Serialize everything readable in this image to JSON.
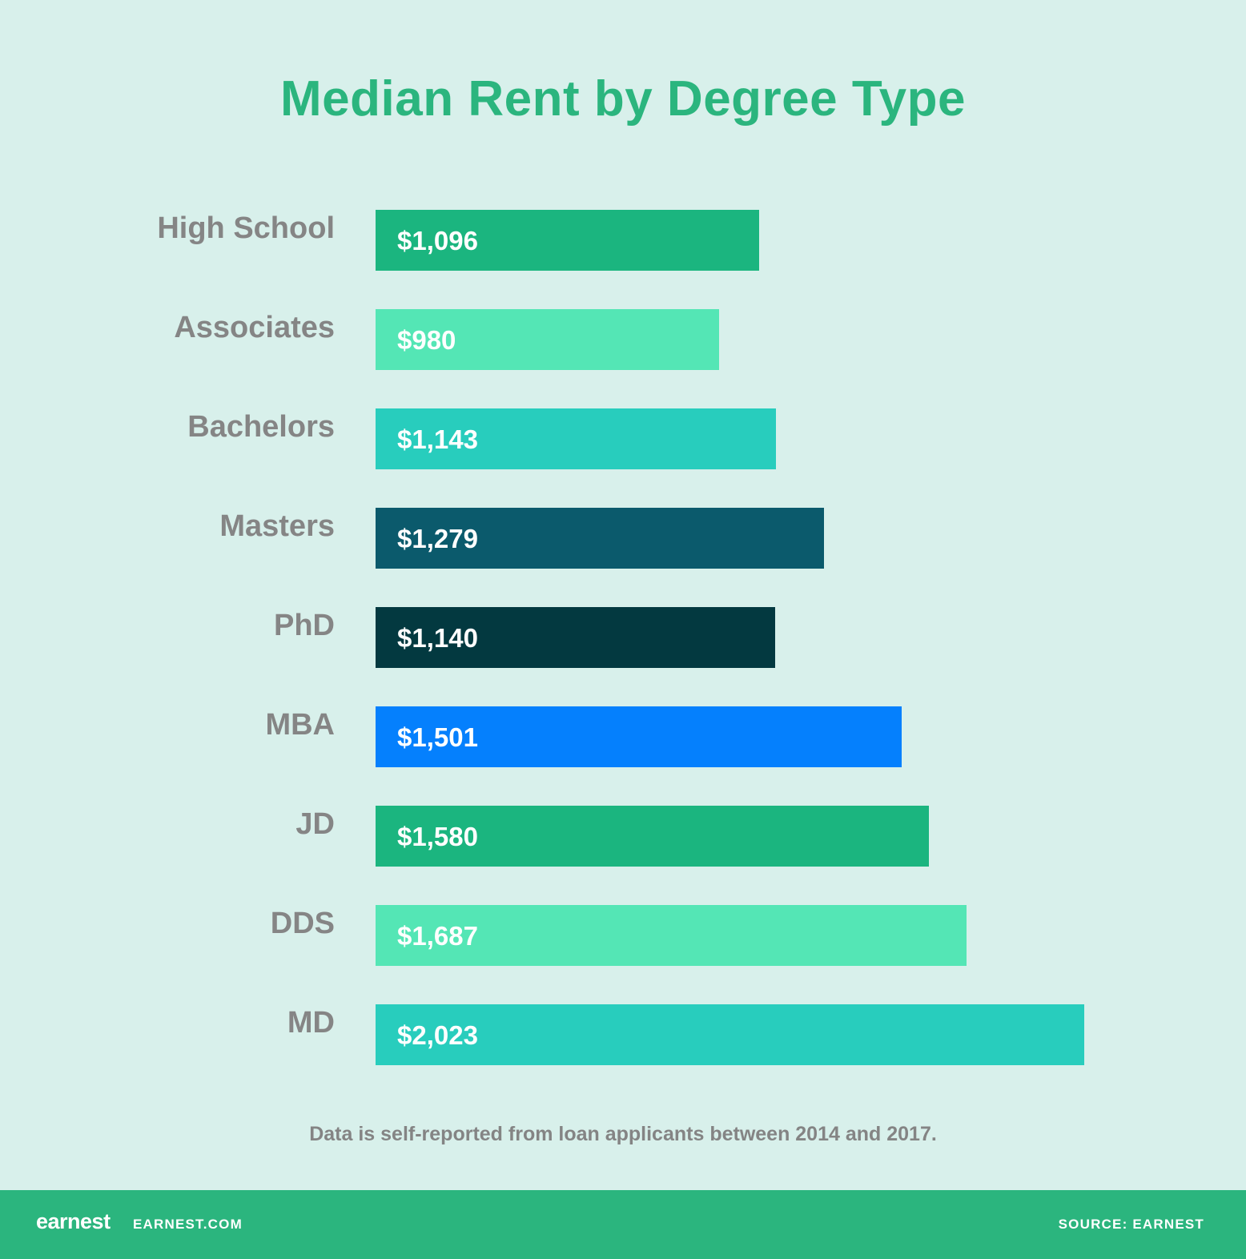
{
  "title": "Median Rent by Degree Type",
  "note": "Data is self-reported from loan applicants between 2014 and 2017.",
  "footer": {
    "logo_text": "earnest",
    "site": "EARNEST.COM",
    "source": "SOURCE: EARNEST"
  },
  "colors": {
    "background": "#d8f0eb",
    "title": "#2bb57e",
    "footer": "#2bb57e",
    "label": "#858585"
  },
  "bars": [
    {
      "label": "High School",
      "value_label": "$1,096",
      "value": 1096,
      "color": "#1bb57f"
    },
    {
      "label": "Associates",
      "value_label": "$980",
      "value": 980,
      "color": "#54e6b5"
    },
    {
      "label": "Bachelors",
      "value_label": "$1,143",
      "value": 1143,
      "color": "#28cdbd"
    },
    {
      "label": "Masters",
      "value_label": "$1,279",
      "value": 1279,
      "color": "#0b5a6c"
    },
    {
      "label": "PhD",
      "value_label": "$1,140",
      "value": 1140,
      "color": "#033940"
    },
    {
      "label": "MBA",
      "value_label": "$1,501",
      "value": 1501,
      "color": "#0580fd"
    },
    {
      "label": "JD",
      "value_label": "$1,580",
      "value": 1580,
      "color": "#1bb57f"
    },
    {
      "label": "DDS",
      "value_label": "$1,687",
      "value": 1687,
      "color": "#54e6b5"
    },
    {
      "label": "MD",
      "value_label": "$2,023",
      "value": 2023,
      "color": "#28cdbd"
    }
  ],
  "chart_data": {
    "type": "bar",
    "orientation": "horizontal",
    "title": "Median Rent by Degree Type",
    "categories": [
      "High School",
      "Associates",
      "Bachelors",
      "Masters",
      "PhD",
      "MBA",
      "JD",
      "DDS",
      "MD"
    ],
    "values": [
      1096,
      980,
      1143,
      1279,
      1140,
      1501,
      1580,
      1687,
      2023
    ],
    "value_labels": [
      "$1,096",
      "$980",
      "$1,143",
      "$1,279",
      "$1,140",
      "$1,501",
      "$1,580",
      "$1,687",
      "$2,023"
    ],
    "xlabel": "",
    "ylabel": "",
    "xlim": [
      0,
      2023
    ],
    "grid": false,
    "legend": null,
    "annotations": [
      "Data is self-reported from loan applicants between 2014 and 2017."
    ],
    "source": "SOURCE: EARNEST"
  }
}
